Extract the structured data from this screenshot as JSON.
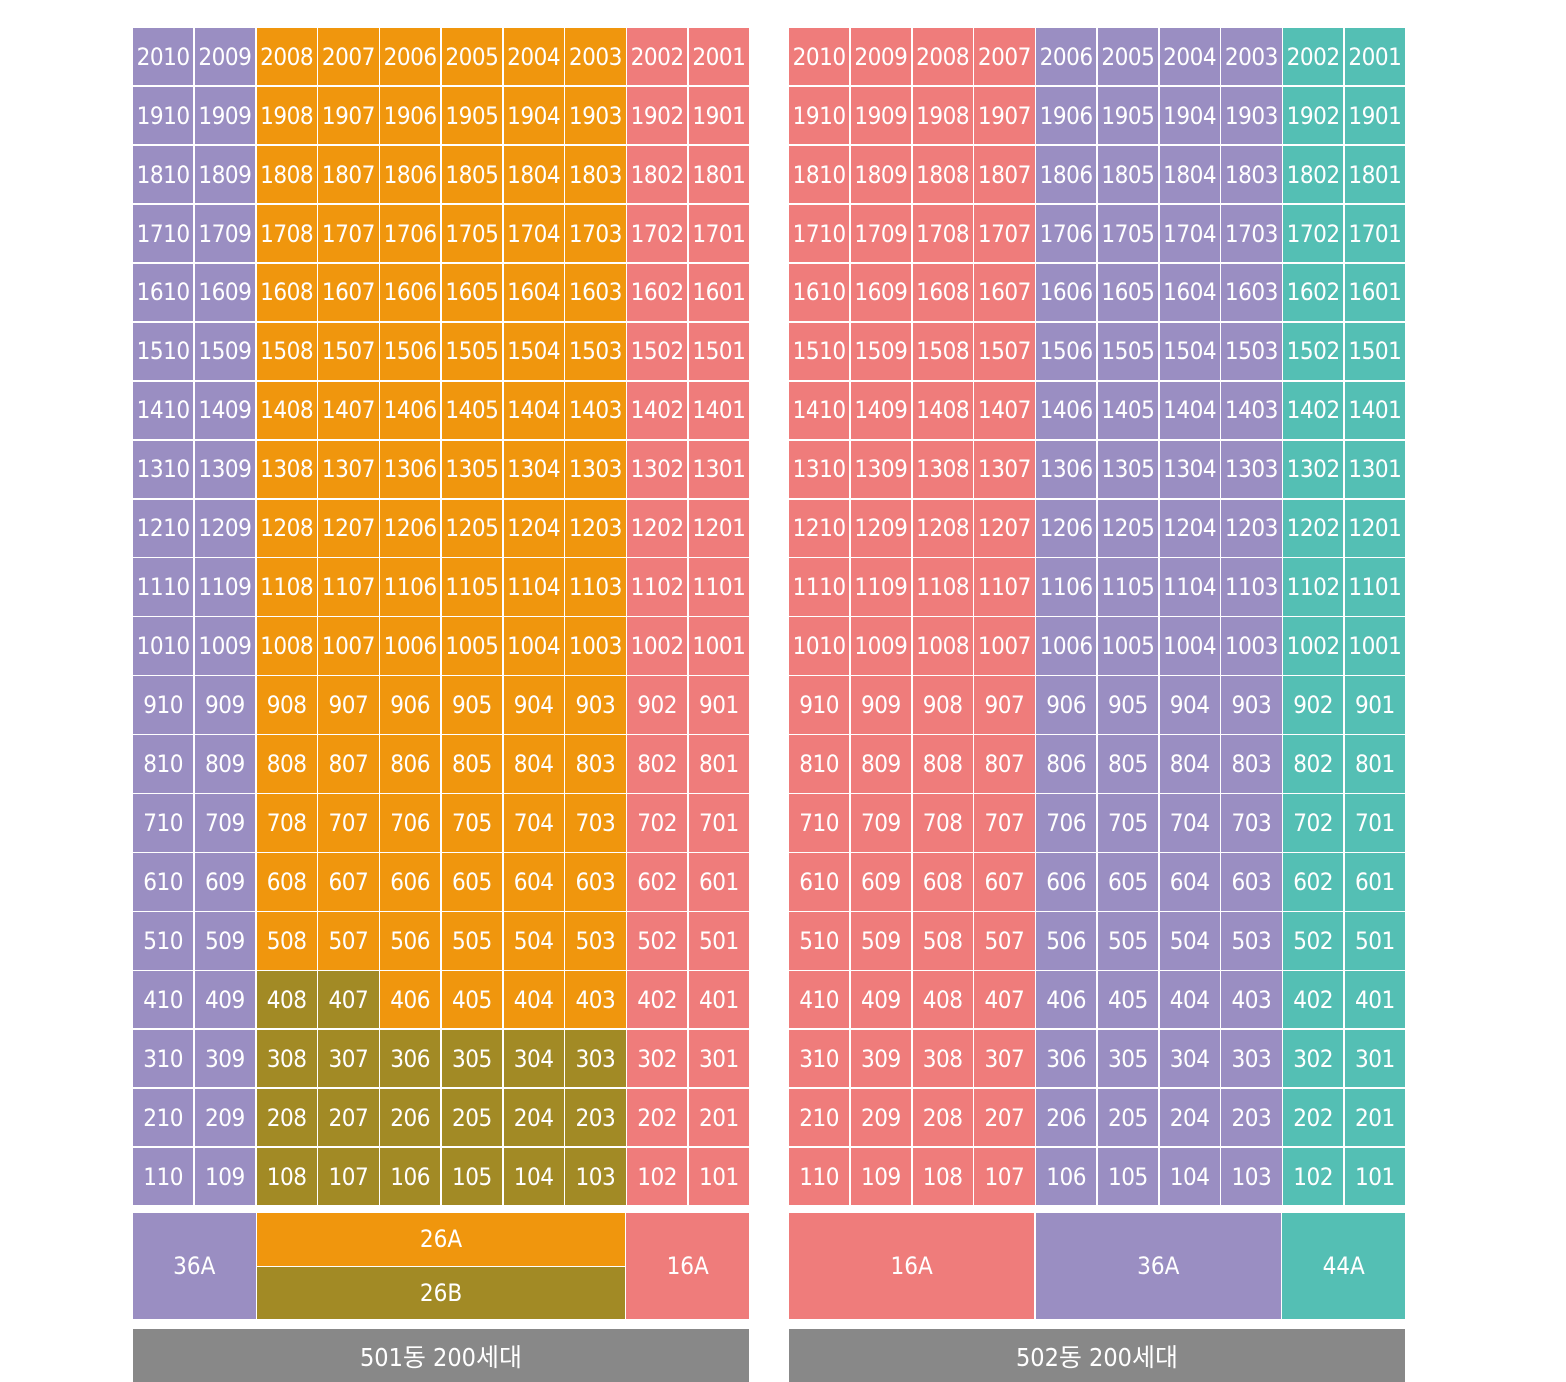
{
  "colors": {
    "purple": "#9a8ec2",
    "orange": "#f0960d",
    "olive": "#a28a25",
    "salmon": "#ef7c7b",
    "teal": "#54bfb4",
    "gray": "#888888"
  },
  "buildings": [
    {
      "id": "501",
      "label": "501동 200세대",
      "floors": 20,
      "units_per_floor": 10,
      "unit_types": [
        {
          "type": "36A",
          "color": "purple",
          "rule": "units 10, 9 on all floors"
        },
        {
          "type": "26A",
          "color": "orange",
          "rule": "units 8–3, floors 5–20 and floor 4 units 6–3"
        },
        {
          "type": "26B",
          "color": "olive",
          "rule": "units 8–3 floors 1–3 and floor 4 units 8–7"
        },
        {
          "type": "16A",
          "color": "salmon",
          "rule": "units 2, 1 on all floors"
        }
      ],
      "legend": [
        {
          "label": "36A",
          "color": "purple"
        },
        {
          "label": "26A",
          "color": "orange"
        },
        {
          "label": "26B",
          "color": "olive"
        },
        {
          "label": "16A",
          "color": "salmon"
        }
      ]
    },
    {
      "id": "502",
      "label": "502동 200세대",
      "floors": 20,
      "units_per_floor": 10,
      "unit_types": [
        {
          "type": "16A",
          "color": "salmon",
          "rule": "units 10–7 on all floors"
        },
        {
          "type": "36A",
          "color": "purple",
          "rule": "units 6–3 on all floors"
        },
        {
          "type": "44A",
          "color": "teal",
          "rule": "units 2, 1 on all floors"
        }
      ],
      "legend": [
        {
          "label": "16A",
          "color": "salmon"
        },
        {
          "label": "36A",
          "color": "purple"
        },
        {
          "label": "44A",
          "color": "teal"
        }
      ]
    }
  ]
}
